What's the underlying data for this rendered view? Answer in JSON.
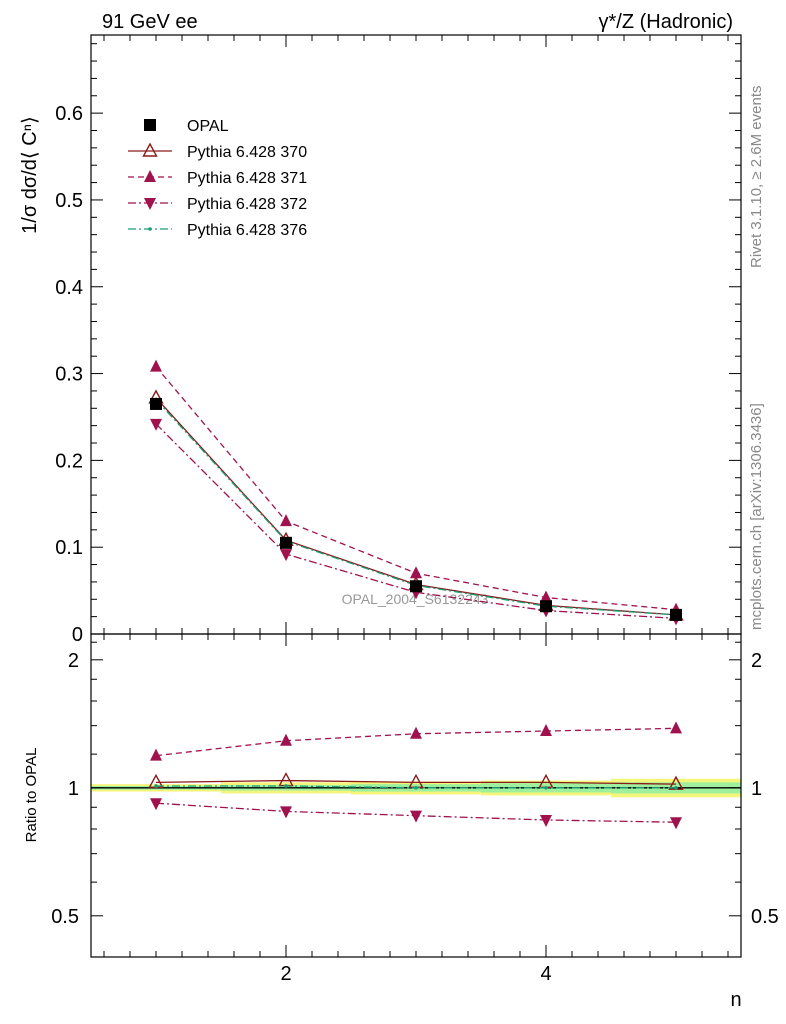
{
  "header": {
    "left": "91 GeV ee",
    "right": "γ*/Z (Hadronic)"
  },
  "side_labels": {
    "rivet": "Rivet 3.1.10, ≥ 2.6M events",
    "mcplots": "mcplots.cern.ch [arXiv:1306.3436]"
  },
  "watermark": "OPAL_2004_S6132243",
  "chart_data": [
    {
      "type": "line",
      "ylabel": "1/σ dσ/d⟨ Cⁿ⟩",
      "xlim": [
        0.5,
        5.5
      ],
      "ylim": [
        0,
        0.69
      ],
      "y_ticks": [
        0,
        0.1,
        0.2,
        0.3,
        0.4,
        0.5,
        0.6
      ],
      "y_tick_labels": [
        "0",
        "0.1",
        "0.2",
        "0.3",
        "0.4",
        "0.5",
        "0.6"
      ],
      "legend_position": "top-left",
      "x": [
        1,
        2,
        3,
        4,
        5
      ],
      "series": [
        {
          "name": "OPAL",
          "values": [
            0.265,
            0.105,
            0.055,
            0.032,
            0.022
          ],
          "color": "#000000",
          "marker": "square",
          "line": "none"
        },
        {
          "name": "Pythia 6.428 370",
          "values": [
            0.272,
            0.108,
            0.057,
            0.033,
            0.022
          ],
          "color": "#8b1a1a",
          "marker": "triangle-up-open",
          "line": "solid"
        },
        {
          "name": "Pythia 6.428 371",
          "values": [
            0.308,
            0.13,
            0.07,
            0.042,
            0.028
          ],
          "color": "#a0124e",
          "marker": "triangle-up",
          "line": "dashed"
        },
        {
          "name": "Pythia 6.428 372",
          "values": [
            0.242,
            0.092,
            0.048,
            0.027,
            0.018
          ],
          "color": "#a0124e",
          "marker": "triangle-down",
          "line": "dashdot"
        },
        {
          "name": "Pythia 6.428 376",
          "values": [
            0.27,
            0.107,
            0.056,
            0.032,
            0.022
          ],
          "color": "#1a9e77",
          "marker": "dot",
          "line": "dashdot"
        }
      ]
    },
    {
      "type": "line",
      "ylabel": "Ratio to OPAL",
      "xlabel": "n",
      "scale": "log",
      "xlim": [
        0.5,
        5.5
      ],
      "ylim": [
        0.4,
        2.3
      ],
      "x_ticks": [
        2,
        4
      ],
      "x_tick_labels": [
        "2",
        "4"
      ],
      "y_ticks": [
        0.5,
        1,
        2
      ],
      "y_tick_labels": [
        "0.5",
        "1",
        "2"
      ],
      "x": [
        1,
        2,
        3,
        4,
        5
      ],
      "series": [
        {
          "name": "Pythia 6.428 370",
          "values": [
            1.03,
            1.04,
            1.03,
            1.03,
            1.02
          ],
          "color": "#8b1a1a",
          "marker": "triangle-up-open",
          "line": "solid"
        },
        {
          "name": "Pythia 6.428 371",
          "values": [
            1.19,
            1.29,
            1.34,
            1.36,
            1.38
          ],
          "color": "#a0124e",
          "marker": "triangle-up",
          "line": "dashed"
        },
        {
          "name": "Pythia 6.428 372",
          "values": [
            0.92,
            0.88,
            0.86,
            0.84,
            0.83
          ],
          "color": "#a0124e",
          "marker": "triangle-down",
          "line": "dashdot"
        },
        {
          "name": "Pythia 6.428 376",
          "values": [
            1.01,
            1.01,
            1.0,
            1.0,
            1.0
          ],
          "color": "#1a9e77",
          "marker": "dot",
          "line": "dashdot"
        }
      ],
      "uncertainty_band": {
        "x": [
          0.5,
          1.5,
          2.5,
          3.5,
          4.5,
          5.5
        ],
        "yellow_half": [
          0.02,
          0.03,
          0.035,
          0.04,
          0.05
        ],
        "green_half": [
          0.01,
          0.015,
          0.02,
          0.025,
          0.03
        ]
      }
    }
  ]
}
